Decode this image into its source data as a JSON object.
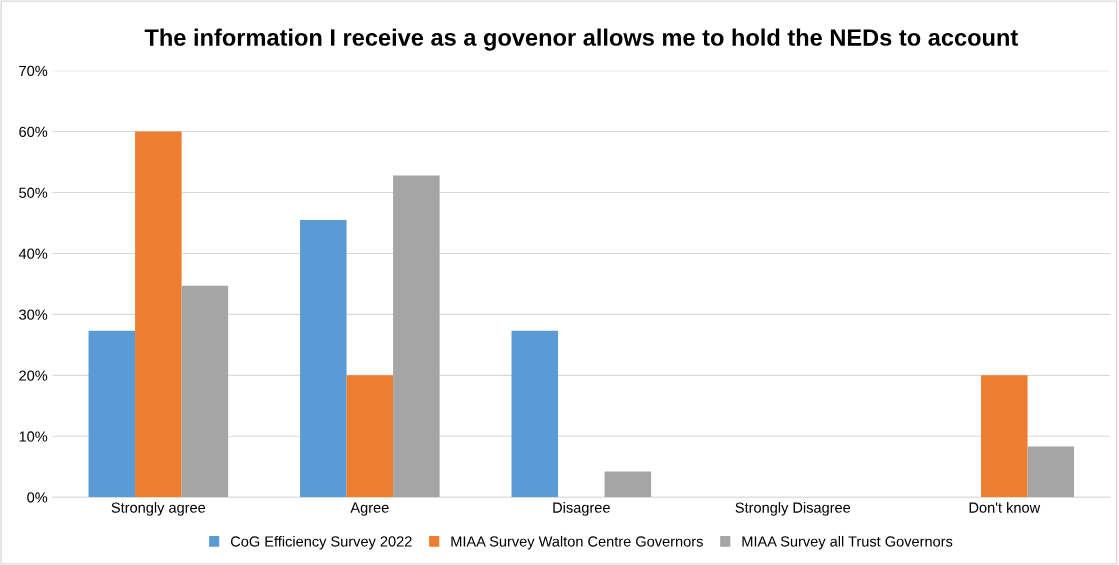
{
  "chart_data": {
    "type": "bar",
    "title": "The information I receive as a govenor allows me to hold the NEDs to account",
    "categories": [
      "Strongly agree",
      "Agree",
      "Disagree",
      "Strongly Disagree",
      "Don't know"
    ],
    "series": [
      {
        "name": "CoG Efficiency Survey 2022",
        "color": "#5b9bd5",
        "values": [
          27.3,
          45.5,
          27.3,
          0,
          0
        ]
      },
      {
        "name": "MIAA Survey Walton Centre Governors",
        "color": "#ed7d31",
        "values": [
          60,
          20,
          0,
          0,
          20
        ]
      },
      {
        "name": "MIAA Survey all Trust Governors",
        "color": "#a5a5a5",
        "values": [
          34.7,
          52.8,
          4.2,
          0,
          8.3
        ]
      }
    ],
    "ylim": [
      0,
      70
    ],
    "yticks": [
      {
        "value": 0,
        "label": "0%"
      },
      {
        "value": 10,
        "label": "10%"
      },
      {
        "value": 20,
        "label": "20%"
      },
      {
        "value": 30,
        "label": "30%"
      },
      {
        "value": 40,
        "label": "40%"
      },
      {
        "value": 50,
        "label": "50%"
      },
      {
        "value": 60,
        "label": "60%"
      },
      {
        "value": 70,
        "label": "70%"
      }
    ],
    "grid": "y",
    "legend": "bottom"
  }
}
